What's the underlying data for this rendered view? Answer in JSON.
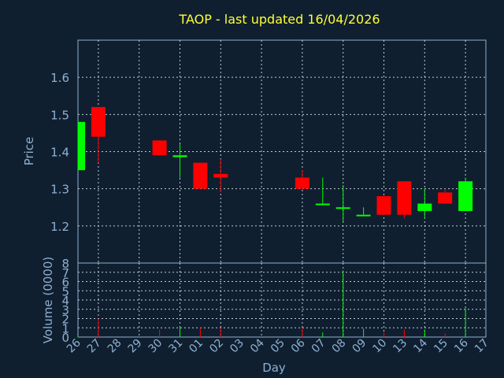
{
  "chart_data": {
    "type": "candlestick",
    "title": "TAOP - last updated 16/04/2026",
    "xlabel": "Day",
    "price_panel": {
      "ylabel": "Price",
      "ylim": [
        1.1,
        1.7
      ],
      "yticks": [
        "1.2",
        "1.3",
        "1.4",
        "1.5",
        "1.6"
      ],
      "grid": true
    },
    "volume_panel": {
      "ylabel": "Volume (0000)",
      "ylim": [
        0,
        8
      ],
      "yticks": [
        "0",
        "1",
        "2",
        "3",
        "4",
        "5",
        "6",
        "7",
        "8"
      ],
      "grid": true
    },
    "x_ticks": [
      "26",
      "27",
      "28",
      "29",
      "30",
      "31",
      "01",
      "02",
      "03",
      "04",
      "05",
      "06",
      "07",
      "08",
      "09",
      "10",
      "13",
      "14",
      "15",
      "16",
      "17"
    ],
    "candles": [
      {
        "day": "26",
        "open": 1.35,
        "high": 1.48,
        "low": 1.35,
        "close": 1.48,
        "volume": 0.1
      },
      {
        "day": "27",
        "open": 1.52,
        "high": 1.52,
        "low": 1.37,
        "close": 1.44,
        "volume": 2.0
      },
      {
        "day": "30",
        "open": 1.43,
        "high": 1.43,
        "low": 1.39,
        "close": 1.39,
        "volume": 0.8
      },
      {
        "day": "31",
        "open": 1.385,
        "high": 1.42,
        "low": 1.33,
        "close": 1.39,
        "volume": 1.1
      },
      {
        "day": "01",
        "open": 1.37,
        "high": 1.37,
        "low": 1.3,
        "close": 1.3,
        "volume": 1.0
      },
      {
        "day": "02",
        "open": 1.34,
        "high": 1.38,
        "low": 1.29,
        "close": 1.33,
        "volume": 1.0
      },
      {
        "day": "06",
        "open": 1.33,
        "high": 1.35,
        "low": 1.3,
        "close": 1.3,
        "volume": 1.0
      },
      {
        "day": "07",
        "open": 1.26,
        "high": 1.33,
        "low": 1.26,
        "close": 1.26,
        "volume": 0.5
      },
      {
        "day": "08",
        "open": 1.25,
        "high": 1.31,
        "low": 1.21,
        "close": 1.25,
        "volume": 7.2
      },
      {
        "day": "09",
        "open": 1.23,
        "high": 1.25,
        "low": 1.23,
        "close": 1.23,
        "volume": 0.9
      },
      {
        "day": "10",
        "open": 1.28,
        "high": 1.28,
        "low": 1.23,
        "close": 1.23,
        "volume": 0.5
      },
      {
        "day": "13",
        "open": 1.32,
        "high": 1.32,
        "low": 1.22,
        "close": 1.23,
        "volume": 0.8
      },
      {
        "day": "14",
        "open": 1.24,
        "high": 1.3,
        "low": 1.22,
        "close": 1.26,
        "volume": 0.8
      },
      {
        "day": "15",
        "open": 1.29,
        "high": 1.3,
        "low": 1.26,
        "close": 1.26,
        "volume": 0.4
      },
      {
        "day": "16",
        "open": 1.24,
        "high": 1.33,
        "low": 1.24,
        "close": 1.32,
        "volume": 3.1
      }
    ],
    "colors": {
      "background": "#0f1f30",
      "up": "#00ff00",
      "down": "#ff0000",
      "axis": "#8fb0d0",
      "title": "#ffff33",
      "grid": "#e0e8f0"
    }
  }
}
